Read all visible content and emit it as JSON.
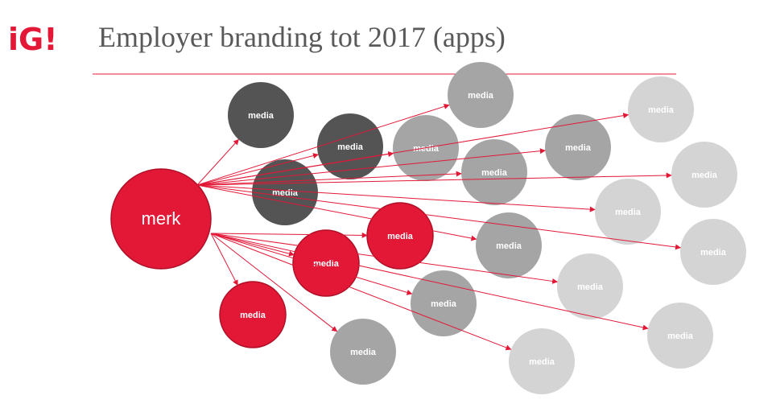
{
  "header": {
    "logo": "iG!",
    "title": "Employer branding tot 2017 (apps)"
  },
  "nodes": [
    {
      "label": "merk"
    },
    {
      "label": "media"
    },
    {
      "label": "media"
    },
    {
      "label": "media"
    },
    {
      "label": "media"
    },
    {
      "label": "media"
    },
    {
      "label": "media"
    },
    {
      "label": "media"
    },
    {
      "label": "media"
    },
    {
      "label": "media"
    },
    {
      "label": "media"
    },
    {
      "label": "media"
    },
    {
      "label": "media"
    },
    {
      "label": "media"
    },
    {
      "label": "media"
    },
    {
      "label": "media"
    },
    {
      "label": "media"
    },
    {
      "label": "media"
    },
    {
      "label": "media"
    },
    {
      "label": "media"
    },
    {
      "label": "media"
    }
  ]
}
